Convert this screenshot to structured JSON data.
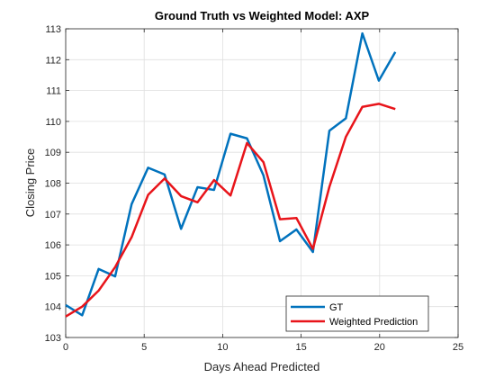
{
  "chart_data": {
    "type": "line",
    "title": "Ground Truth vs Weighted Model: AXP",
    "xlabel": "Days Ahead Predicted",
    "ylabel": "Closing Price",
    "xlim": [
      0,
      25
    ],
    "ylim": [
      103,
      113
    ],
    "xticks": [
      0,
      5,
      10,
      15,
      20,
      25
    ],
    "yticks": [
      103,
      104,
      105,
      106,
      107,
      108,
      109,
      110,
      111,
      112,
      113
    ],
    "grid": true,
    "legend_position": "bottom-right",
    "series": [
      {
        "name": "GT",
        "color": "#0072BD",
        "x": [
          0,
          1.05,
          2.1,
          3.15,
          4.2,
          5.25,
          6.3,
          7.35,
          8.4,
          9.45,
          10.5,
          11.55,
          12.6,
          13.65,
          14.7,
          15.75,
          16.8,
          17.85,
          18.9,
          19.95,
          21
        ],
        "y": [
          104.05,
          103.72,
          105.22,
          104.98,
          107.32,
          108.5,
          108.28,
          106.52,
          107.87,
          107.78,
          109.6,
          109.45,
          108.25,
          106.12,
          106.5,
          105.77,
          109.7,
          110.1,
          112.85,
          111.32,
          112.25
        ]
      },
      {
        "name": "Weighted Prediction",
        "color": "#E8141A",
        "x": [
          0,
          1.05,
          2.1,
          3.15,
          4.2,
          5.25,
          6.3,
          7.35,
          8.4,
          9.45,
          10.5,
          11.55,
          12.6,
          13.65,
          14.7,
          15.75,
          16.8,
          17.85,
          18.9,
          19.95,
          21
        ],
        "y": [
          103.68,
          104.0,
          104.52,
          105.28,
          106.25,
          107.62,
          108.15,
          107.58,
          107.38,
          108.1,
          107.6,
          109.3,
          108.68,
          106.83,
          106.87,
          105.87,
          107.88,
          109.5,
          110.47,
          110.57,
          110.4
        ]
      }
    ]
  }
}
